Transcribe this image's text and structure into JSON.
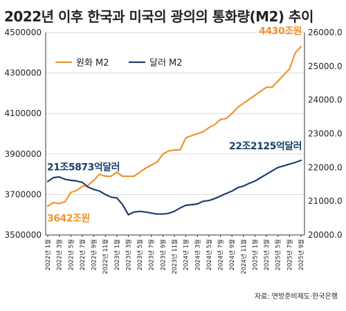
{
  "chart_data": {
    "type": "line",
    "title": "2022년 이후 한국과 미국의 광의의 통화량(M2) 추이",
    "source": "자료: 연방준비제도·한국은행",
    "x": [
      "2022년 1월",
      "2022년 2월",
      "2022년 3월",
      "2022년 4월",
      "2022년 5월",
      "2022년 6월",
      "2022년 7월",
      "2022년 8월",
      "2022년 9월",
      "2022년 10월",
      "2022년 11월",
      "2022년 12월",
      "2023년 1월",
      "2023년 2월",
      "2023년 3월",
      "2023년 4월",
      "2023년 5월",
      "2023년 6월",
      "2023년 7월",
      "2023년 8월",
      "2023년 9월",
      "2023년 10월",
      "2023년 11월",
      "2023년 12월",
      "2024년 1월",
      "2024년 2월",
      "2024년 3월",
      "2024년 4월",
      "2024년 5월",
      "2024년 6월",
      "2024년 7월",
      "2024년 8월",
      "2024년 9월",
      "2024년 10월",
      "2024년 11월",
      "2024년 12월",
      "2025년 1월",
      "2025년 2월",
      "2025년 3월",
      "2025년 4월",
      "2025년 5월",
      "2025년 6월",
      "2025년 7월",
      "2025년 8월",
      "2025년 9월"
    ],
    "x_tick_labels": [
      "2022년 1월",
      "2022년 3월",
      "2022년 5월",
      "2022년 7월",
      "2022년 9월",
      "2022년 11월",
      "2023년 1월",
      "2023년 3월",
      "2023년 5월",
      "2023년 7월",
      "2023년 9월",
      "2023년 11월",
      "2024년 1월",
      "2024년 3월",
      "2024년 5월",
      "2024년 7월",
      "2024년 9월",
      "2024년 11월",
      "2025년 1월",
      "2025년 3월",
      "2025년 5월",
      "2025년 7월",
      "2025년 9월"
    ],
    "y_left": {
      "ylim": [
        3500000,
        4500000
      ],
      "ticks": [
        "3500000",
        "3700000",
        "3900000",
        "4100000",
        "4300000",
        "4500000"
      ]
    },
    "y_right": {
      "ylim": [
        20000,
        26000
      ],
      "ticks": [
        "20000.0",
        "21000.0",
        "22000.0",
        "23000.0",
        "24000.0",
        "25000.0",
        "26000.0"
      ]
    },
    "grid": {
      "horizontal": true,
      "vertical": false
    },
    "legend_position": "top-left",
    "series": [
      {
        "name": "원화 M2",
        "axis": "left",
        "color": "#F0922E",
        "values": [
          3642000,
          3660000,
          3655000,
          3665000,
          3710000,
          3720000,
          3740000,
          3745000,
          3770000,
          3800000,
          3790000,
          3790000,
          3810000,
          3790000,
          3790000,
          3790000,
          3810000,
          3830000,
          3845000,
          3860000,
          3900000,
          3915000,
          3920000,
          3920000,
          3980000,
          3990000,
          4000000,
          4010000,
          4030000,
          4045000,
          4070000,
          4075000,
          4100000,
          4130000,
          4150000,
          4170000,
          4190000,
          4210000,
          4230000,
          4230000,
          4260000,
          4290000,
          4320000,
          4400000,
          4430000
        ]
      },
      {
        "name": "달러 M2",
        "axis": "right",
        "color": "#1B3F6B",
        "values": [
          21587,
          21700,
          21720,
          21650,
          21620,
          21600,
          21560,
          21420,
          21350,
          21300,
          21200,
          21120,
          21100,
          20900,
          20600,
          20680,
          20700,
          20680,
          20650,
          20620,
          20620,
          20640,
          20700,
          20800,
          20880,
          20900,
          20920,
          21000,
          21020,
          21080,
          21150,
          21230,
          21300,
          21400,
          21450,
          21530,
          21600,
          21700,
          21800,
          21900,
          22000,
          22050,
          22100,
          22150,
          22212
        ]
      }
    ],
    "annotations": [
      {
        "text": "4430조원",
        "series": "원화 M2",
        "index": 44,
        "color": "#F0922E"
      },
      {
        "text": "3642조원",
        "series": "원화 M2",
        "index": 0,
        "color": "#F0922E"
      },
      {
        "text": "22조2125억달러",
        "series": "달러 M2",
        "index": 44,
        "color": "#1B3F6B"
      },
      {
        "text": "21조5873억달러",
        "series": "달러 M2",
        "index": 0,
        "color": "#1B3F6B"
      }
    ]
  }
}
